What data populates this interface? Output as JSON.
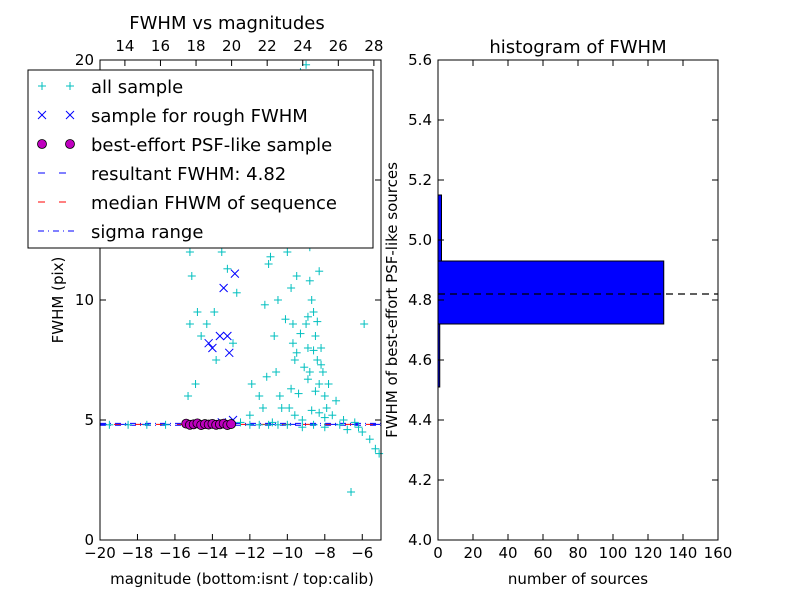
{
  "chart_data": [
    {
      "type": "scatter",
      "title": "FWHM vs magnitudes",
      "xlabel": "magnitude (bottom:isnt / top:calib)",
      "ylabel": "FWHM (pix)",
      "xlim": [
        -20,
        -5
      ],
      "ylim": [
        0,
        20
      ],
      "xticks": [
        -20,
        -18,
        -16,
        -14,
        -12,
        -10,
        -8,
        -6
      ],
      "xtick_labels": [
        "−20",
        "−18",
        "−16",
        "−14",
        "−12",
        "−10",
        "−8",
        "−6"
      ],
      "yticks": [
        0,
        5,
        10,
        15,
        20
      ],
      "ytick_labels": [
        "0",
        "5",
        "10",
        "15",
        "20"
      ],
      "top_xticks": [
        14,
        16,
        18,
        20,
        22,
        24,
        26,
        28
      ],
      "top_xtick_labels": [
        "14",
        "16",
        "18",
        "20",
        "22",
        "24",
        "26",
        "28"
      ],
      "top_xlim": [
        12.6,
        28.4
      ],
      "grid": false,
      "legend_position": "top-left",
      "legend": [
        {
          "label": "all sample",
          "marker": "plus",
          "color": "#00bfbf"
        },
        {
          "label": "sample for rough FWHM",
          "marker": "x",
          "color": "#0000ff"
        },
        {
          "label": "best-effort PSF-like sample",
          "marker": "circle",
          "color": "#bf00bf"
        },
        {
          "label": "resultant FWHM: 4.82",
          "marker": "dash",
          "color": "#0000ff"
        },
        {
          "label": "median FHWM of sequence",
          "marker": "dash",
          "color": "#ff0000"
        },
        {
          "label": "sigma range",
          "marker": "dashdot",
          "color": "#0000ff"
        }
      ],
      "series": [
        {
          "name": "all sample",
          "color": "#00bfbf",
          "points": [
            [
              -15.3,
              6.0
            ],
            [
              -15.2,
              9.0
            ],
            [
              -15.1,
              11.0
            ],
            [
              -15.0,
              13.0
            ],
            [
              -15.2,
              12.0
            ],
            [
              -14.8,
              9.5
            ],
            [
              -14.9,
              6.5
            ],
            [
              -14.6,
              8.5
            ],
            [
              -14.3,
              9.0
            ],
            [
              -13.9,
              9.5
            ],
            [
              -13.5,
              12.0
            ],
            [
              -13.2,
              11.3
            ],
            [
              -12.9,
              8.2
            ],
            [
              -12.7,
              10.3
            ],
            [
              -13.8,
              7.5
            ],
            [
              -12.0,
              5.2
            ],
            [
              -11.9,
              6.5
            ],
            [
              -11.5,
              6.0
            ],
            [
              -11.3,
              5.5
            ],
            [
              -11.1,
              6.8
            ],
            [
              -11.0,
              11.5
            ],
            [
              -10.9,
              11.8
            ],
            [
              -10.8,
              13.6
            ],
            [
              -10.7,
              8.5
            ],
            [
              -10.6,
              7.0
            ],
            [
              -10.4,
              6.0
            ],
            [
              -10.3,
              5.5
            ],
            [
              -10.2,
              14.5
            ],
            [
              -10.0,
              16.5
            ],
            [
              -10.0,
              12.0
            ],
            [
              -9.8,
              10.5
            ],
            [
              -9.7,
              9.0
            ],
            [
              -9.6,
              7.5
            ],
            [
              -9.5,
              11.0
            ],
            [
              -9.4,
              13.5
            ],
            [
              -9.3,
              19.5
            ],
            [
              -9.2,
              18.0
            ],
            [
              -9.1,
              16.0
            ],
            [
              -9.0,
              12.5
            ],
            [
              -9.0,
              9.0
            ],
            [
              -8.9,
              8.0
            ],
            [
              -8.8,
              7.0
            ],
            [
              -8.7,
              10.0
            ],
            [
              -8.6,
              9.5
            ],
            [
              -8.5,
              8.5
            ],
            [
              -8.4,
              7.5
            ],
            [
              -8.3,
              6.5
            ],
            [
              -8.2,
              8.0
            ],
            [
              -8.1,
              7.0
            ],
            [
              -8.0,
              6.0
            ],
            [
              -7.9,
              5.5
            ],
            [
              -7.8,
              6.5
            ],
            [
              -7.6,
              5.2
            ],
            [
              -7.4,
              5.8
            ],
            [
              -7.2,
              4.8
            ],
            [
              -7.0,
              5.0
            ],
            [
              -6.8,
              4.6
            ],
            [
              -6.6,
              2.0
            ],
            [
              -6.4,
              4.9
            ],
            [
              -6.0,
              4.5
            ],
            [
              -5.9,
              9.0
            ],
            [
              -5.6,
              4.2
            ],
            [
              -5.3,
              3.8
            ],
            [
              -5.1,
              3.6
            ],
            [
              -9.9,
              5.5
            ],
            [
              -9.8,
              6.3
            ],
            [
              -9.6,
              5.2
            ],
            [
              -9.4,
              6.1
            ],
            [
              -9.2,
              5.0
            ],
            [
              -8.9,
              6.7
            ],
            [
              -8.7,
              5.4
            ],
            [
              -8.5,
              6.2
            ],
            [
              -8.3,
              5.3
            ],
            [
              -8.2,
              7.3
            ],
            [
              -8.0,
              5.1
            ],
            [
              -9.7,
              8.2
            ],
            [
              -9.5,
              7.8
            ],
            [
              -9.3,
              8.6
            ],
            [
              -9.1,
              7.2
            ],
            [
              -8.9,
              9.3
            ],
            [
              -8.8,
              10.8
            ],
            [
              -8.6,
              7.9
            ],
            [
              -8.4,
              9.1
            ],
            [
              -8.3,
              11.2
            ],
            [
              -9.5,
              15.0
            ],
            [
              -9.2,
              14.0
            ],
            [
              -9.0,
              13.8
            ],
            [
              -8.8,
              12.2
            ],
            [
              -9.6,
              17.2
            ],
            [
              -8.9,
              16.8
            ],
            [
              -9.4,
              19.0
            ],
            [
              -9.0,
              19.8
            ],
            [
              -10.5,
              10.0
            ],
            [
              -10.1,
              9.2
            ],
            [
              -11.2,
              9.8
            ],
            [
              -10.8,
              4.9
            ],
            [
              -10.0,
              4.8
            ],
            [
              -9.2,
              4.7
            ],
            [
              -8.6,
              4.8
            ],
            [
              -8.0,
              4.7
            ],
            [
              -12.5,
              4.9
            ],
            [
              -12.0,
              4.8
            ],
            [
              -11.5,
              4.8
            ],
            [
              -11.0,
              4.8
            ],
            [
              -10.5,
              4.8
            ],
            [
              -16.5,
              4.8
            ],
            [
              -17.5,
              4.8
            ],
            [
              -18.5,
              4.8
            ],
            [
              -19.5,
              4.8
            ],
            [
              -6.2,
              4.7
            ]
          ]
        },
        {
          "name": "sample for rough FWHM",
          "color": "#0000ff",
          "points": [
            [
              -14.2,
              8.2
            ],
            [
              -14.0,
              8.0
            ],
            [
              -13.6,
              8.5
            ],
            [
              -13.4,
              10.5
            ],
            [
              -13.2,
              8.5
            ],
            [
              -13.1,
              7.8
            ],
            [
              -12.8,
              11.1
            ],
            [
              -12.9,
              5.0
            ],
            [
              -13.5,
              4.9
            ],
            [
              -14.5,
              4.8
            ]
          ]
        },
        {
          "name": "best-effort PSF-like sample",
          "color": "#bf00bf",
          "points": [
            [
              -15.4,
              4.85
            ],
            [
              -15.2,
              4.8
            ],
            [
              -15.0,
              4.82
            ],
            [
              -14.8,
              4.86
            ],
            [
              -14.6,
              4.79
            ],
            [
              -14.4,
              4.83
            ],
            [
              -14.2,
              4.81
            ],
            [
              -14.0,
              4.84
            ],
            [
              -13.8,
              4.8
            ],
            [
              -13.6,
              4.82
            ],
            [
              -13.4,
              4.85
            ],
            [
              -13.2,
              4.79
            ],
            [
              -13.0,
              4.83
            ]
          ]
        }
      ],
      "lines": [
        {
          "name": "resultant FWHM: 4.82",
          "y": 4.82,
          "color": "#0000ff",
          "style": "dashed"
        },
        {
          "name": "median FHWM of sequence",
          "y": 4.82,
          "color": "#ff0000",
          "style": "dashed"
        },
        {
          "name": "sigma range",
          "y": 4.78,
          "color": "#0000ff",
          "style": "dashdot"
        },
        {
          "name": "sigma range",
          "y": 4.86,
          "color": "#0000ff",
          "style": "dashdot"
        }
      ]
    },
    {
      "type": "bar",
      "orientation": "horizontal",
      "title": "histogram of FWHM",
      "xlabel": "number of sources",
      "ylabel": "FWHM of best-effort PSF-like sources",
      "xlim": [
        0,
        160
      ],
      "ylim": [
        4.0,
        5.6
      ],
      "xticks": [
        0,
        20,
        40,
        60,
        80,
        100,
        120,
        140,
        160
      ],
      "xtick_labels": [
        "0",
        "20",
        "40",
        "60",
        "80",
        "100",
        "120",
        "140",
        "160"
      ],
      "yticks": [
        4.0,
        4.2,
        4.4,
        4.6,
        4.8,
        5.0,
        5.2,
        5.4,
        5.6
      ],
      "ytick_labels": [
        "4.0",
        "4.2",
        "4.4",
        "4.6",
        "4.8",
        "5.0",
        "5.2",
        "5.4",
        "5.6"
      ],
      "grid": false,
      "bars": [
        {
          "y0": 4.51,
          "y1": 4.72,
          "count": 1
        },
        {
          "y0": 4.72,
          "y1": 4.93,
          "count": 129
        },
        {
          "y0": 4.93,
          "y1": 5.15,
          "count": 2
        }
      ],
      "reference_line": {
        "y": 4.82,
        "color": "#000000",
        "style": "dashed"
      },
      "bar_color": "#0000ff"
    }
  ]
}
